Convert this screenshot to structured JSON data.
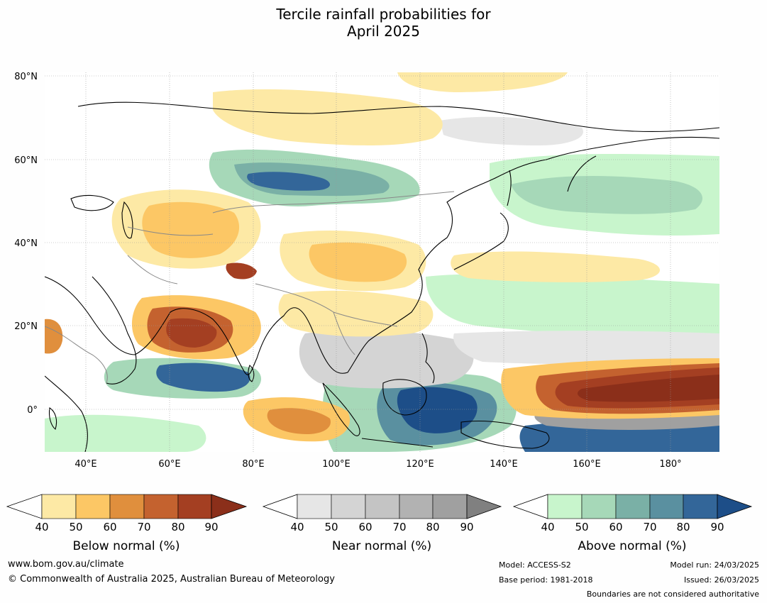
{
  "title_line1": "Tercile rainfall probabilities for",
  "title_line2": "April 2025",
  "map": {
    "lat_labels": [
      "80°N",
      "60°N",
      "40°N",
      "20°N",
      "0°"
    ],
    "lon_labels": [
      "40°E",
      "60°E",
      "80°E",
      "100°E",
      "120°E",
      "140°E",
      "160°E",
      "180°"
    ],
    "colors": {
      "below": [
        "#fde9a5",
        "#fcc765",
        "#e08f3d",
        "#c4622f",
        "#a43f22",
        "#8b2f1a"
      ],
      "near": [
        "#e6e6e6",
        "#d4d4d4",
        "#c4c4c4",
        "#b2b2b2",
        "#a0a0a0",
        "#808080"
      ],
      "above": [
        "#c8f5cc",
        "#a6d8b8",
        "#7ab0a6",
        "#5a90a0",
        "#336699",
        "#1d4e88"
      ],
      "land_outline": "#000000",
      "border": "#888888"
    }
  },
  "colorbars": [
    {
      "label": "Below normal (%)",
      "ticks": [
        "40",
        "50",
        "60",
        "70",
        "80",
        "90"
      ],
      "colors": [
        "#fde9a5",
        "#fcc765",
        "#e08f3d",
        "#c4622f",
        "#a43f22"
      ],
      "extend_color": "#8b2f1a"
    },
    {
      "label": "Near normal (%)",
      "ticks": [
        "40",
        "50",
        "60",
        "70",
        "80",
        "90"
      ],
      "colors": [
        "#e6e6e6",
        "#d4d4d4",
        "#c4c4c4",
        "#b2b2b2",
        "#a0a0a0"
      ],
      "extend_color": "#808080"
    },
    {
      "label": "Above normal (%)",
      "ticks": [
        "40",
        "50",
        "60",
        "70",
        "80",
        "90"
      ],
      "colors": [
        "#c8f5cc",
        "#a6d8b8",
        "#7ab0a6",
        "#5a90a0",
        "#336699"
      ],
      "extend_color": "#1d4e88"
    }
  ],
  "footer": {
    "url": "www.bom.gov.au/climate",
    "copyright": "© Commonwealth of Australia 2025, Australian Bureau of Meteorology",
    "model": "Model: ACCESS-S2",
    "base_period": "Base period: 1981-2018",
    "model_run": "Model run: 24/03/2025",
    "issued": "Issued: 26/03/2025",
    "disclaimer": "Boundaries are not considered authoritative"
  }
}
